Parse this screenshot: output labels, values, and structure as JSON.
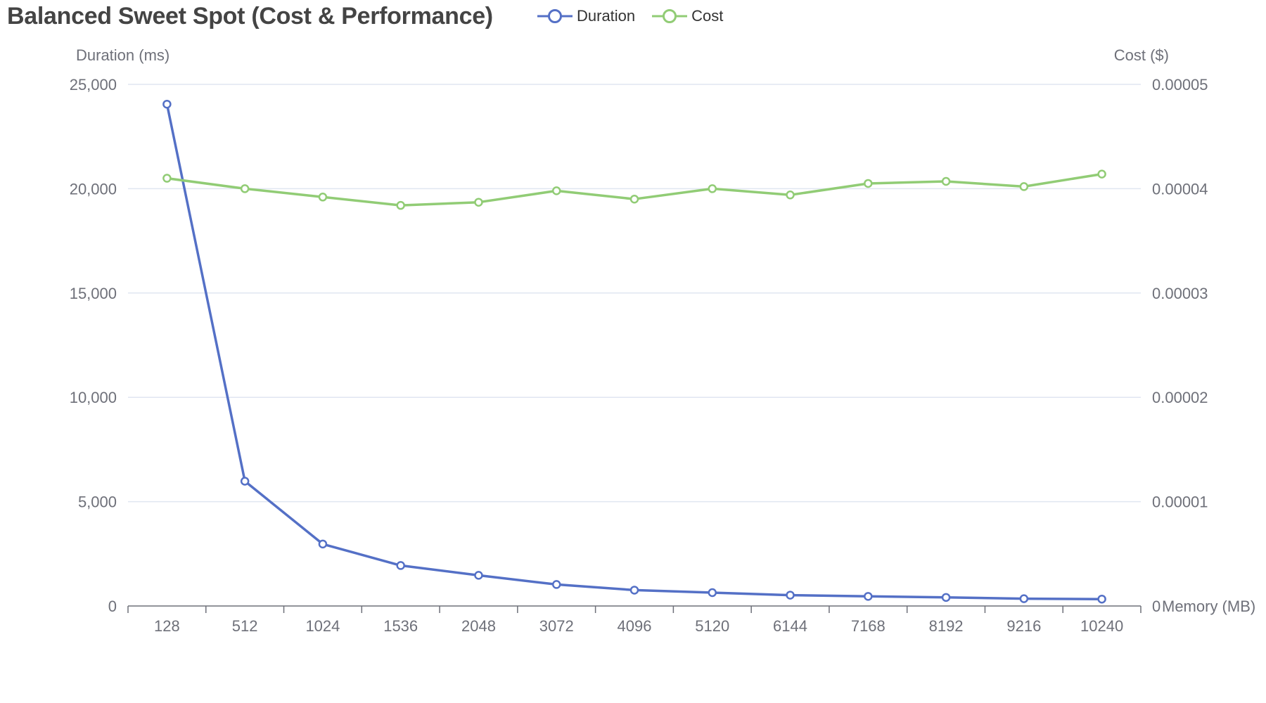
{
  "chart_data": {
    "type": "line",
    "title": "Balanced Sweet Spot (Cost & Performance)",
    "xlabel": "Memory (MB)",
    "categories": [
      "128",
      "512",
      "1024",
      "1536",
      "2048",
      "3072",
      "4096",
      "5120",
      "6144",
      "7168",
      "8192",
      "9216",
      "10240"
    ],
    "y_left": {
      "label": "Duration (ms)",
      "ylim": [
        0,
        25000
      ],
      "ticks": [
        0,
        5000,
        10000,
        15000,
        20000,
        25000
      ],
      "tick_labels": [
        "0",
        "5,000",
        "10,000",
        "15,000",
        "20,000",
        "25,000"
      ]
    },
    "y_right": {
      "label": "Cost ($)",
      "ylim": [
        0,
        5e-05
      ],
      "ticks": [
        0,
        1e-05,
        2e-05,
        3e-05,
        4e-05,
        5e-05
      ],
      "tick_labels": [
        "0",
        "0.00001",
        "0.00002",
        "0.00003",
        "0.00004",
        "0.00005"
      ]
    },
    "series": [
      {
        "name": "Duration",
        "axis": "left",
        "color": "#5470c6",
        "values": [
          24050,
          5980,
          2970,
          1940,
          1470,
          1030,
          760,
          640,
          520,
          460,
          410,
          350,
          330
        ]
      },
      {
        "name": "Cost",
        "axis": "right",
        "color": "#91cc75",
        "values": [
          4.1e-05,
          4e-05,
          3.92e-05,
          3.84e-05,
          3.87e-05,
          3.98e-05,
          3.9e-05,
          4e-05,
          3.94e-05,
          4.05e-05,
          4.07e-05,
          4.02e-05,
          4.14e-05
        ]
      }
    ],
    "grid": true,
    "legend": "top-center"
  }
}
